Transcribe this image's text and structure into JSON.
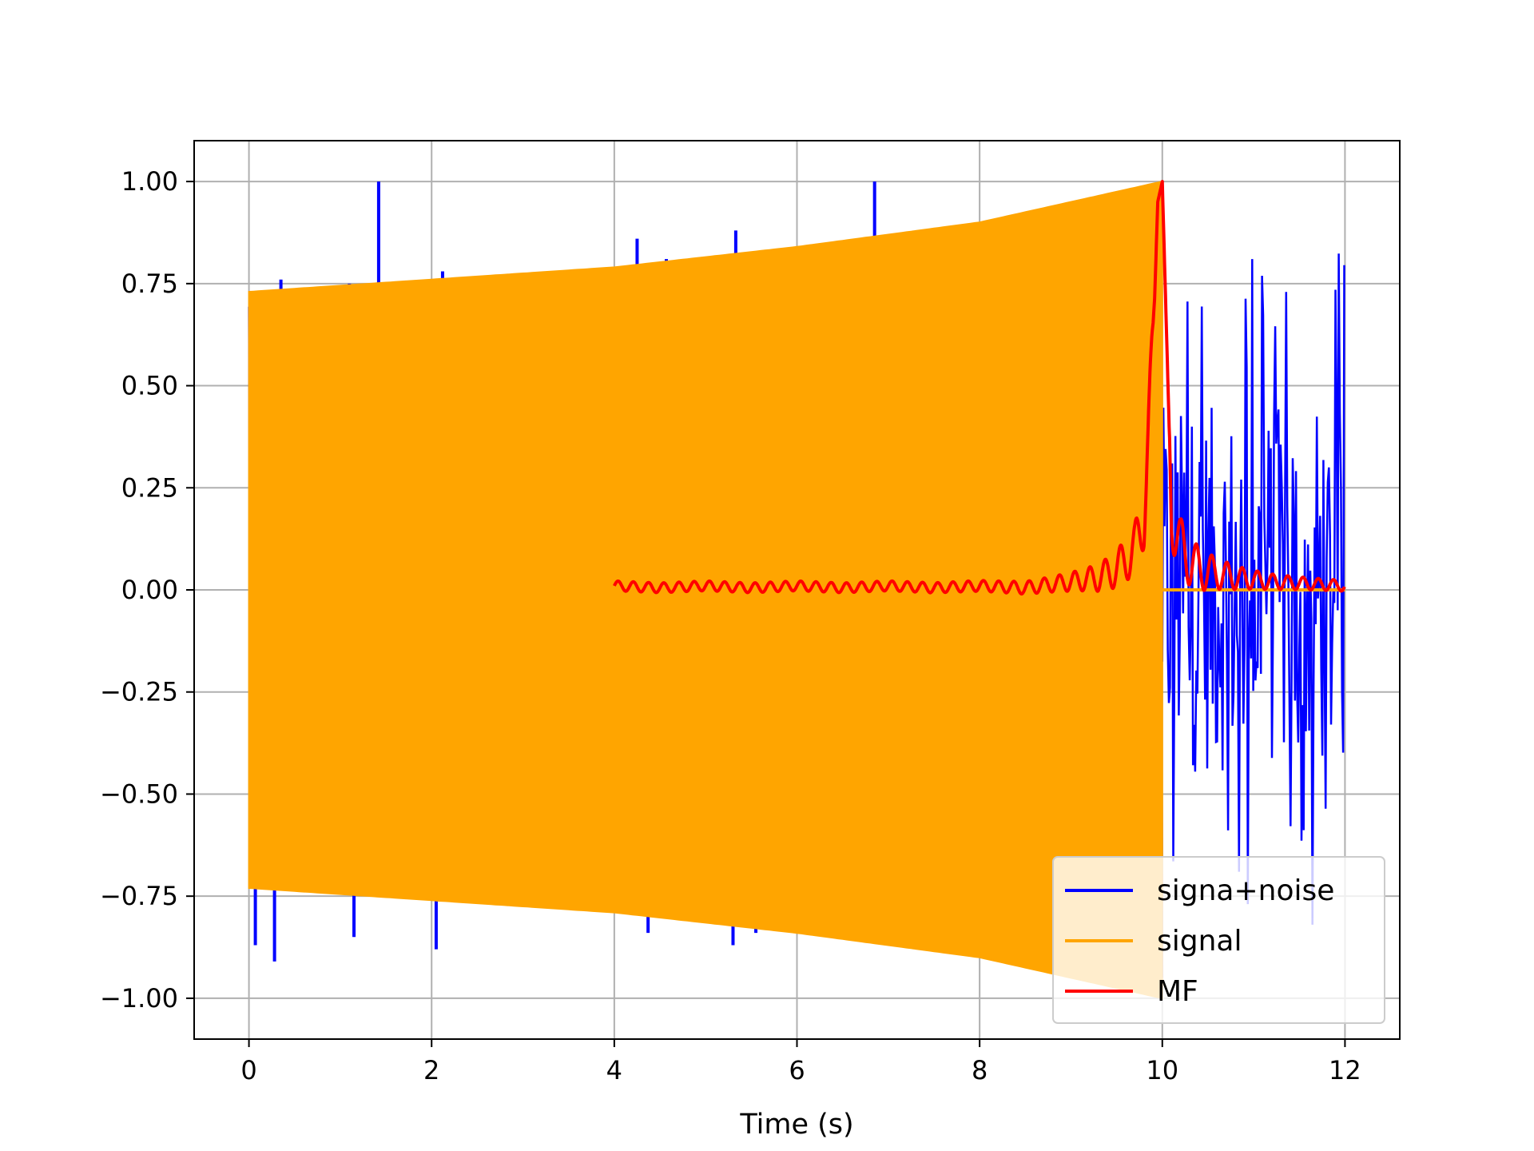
{
  "chart_data": {
    "type": "line",
    "title": "",
    "xlabel": "Time (s)",
    "ylabel": "",
    "xlim": [
      -0.6,
      12.6
    ],
    "ylim": [
      -1.1,
      1.1
    ],
    "xticks": [
      0,
      2,
      4,
      6,
      8,
      10,
      12
    ],
    "xtick_labels": [
      "0",
      "2",
      "4",
      "6",
      "8",
      "10",
      "12"
    ],
    "yticks": [
      1.0,
      0.75,
      0.5,
      0.25,
      0.0,
      -0.25,
      -0.5,
      -0.75,
      -1.0
    ],
    "ytick_labels": [
      "1.00",
      "0.75",
      "0.50",
      "0.25",
      "0.00",
      "−0.25",
      "−0.50",
      "−0.75",
      "−1.00"
    ],
    "grid": true,
    "legend_position": "lower-right",
    "series": [
      {
        "name": "signa+noise",
        "color": "#0000ff",
        "description_points": {
          "t_start": 0.0,
          "t_end": 12.0,
          "spikes": [
            {
              "t": 0.35,
              "y": 0.76
            },
            {
              "t": 1.1,
              "y": 0.75
            },
            {
              "t": 1.42,
              "y": 1.0
            },
            {
              "t": 2.12,
              "y": 0.78
            },
            {
              "t": 4.25,
              "y": 0.86
            },
            {
              "t": 4.57,
              "y": 0.81
            },
            {
              "t": 5.33,
              "y": 0.88
            },
            {
              "t": 6.85,
              "y": 1.0
            },
            {
              "t": 0.07,
              "y": -0.87
            },
            {
              "t": 0.28,
              "y": -0.91
            },
            {
              "t": 1.15,
              "y": -0.85
            },
            {
              "t": 2.05,
              "y": -0.88
            },
            {
              "t": 4.37,
              "y": -0.84
            },
            {
              "t": 5.3,
              "y": -0.87
            },
            {
              "t": 5.55,
              "y": -0.84
            }
          ],
          "noise_after_signal": {
            "t_start": 10.0,
            "t_end": 12.0,
            "y_max": 0.85,
            "y_min": -0.82
          }
        }
      },
      {
        "name": "signal",
        "color": "#ffa500",
        "envelope": {
          "t": [
            0.0,
            2.0,
            4.0,
            6.0,
            8.0,
            9.0,
            10.0
          ],
          "amplitude": [
            0.73,
            0.76,
            0.79,
            0.84,
            0.9,
            0.95,
            1.0
          ]
        },
        "after_end": {
          "t_start": 10.0,
          "t_end": 12.0,
          "y": 0.0
        }
      },
      {
        "name": "MF",
        "color": "#ff0000",
        "x": [
          4.0,
          4.5,
          5.0,
          5.5,
          6.0,
          6.5,
          7.0,
          7.5,
          8.0,
          8.5,
          9.0,
          9.3,
          9.5,
          9.7,
          9.8,
          9.9,
          9.95,
          10.0,
          10.05,
          10.1,
          10.2,
          10.4,
          10.8,
          11.2,
          11.6,
          12.0
        ],
        "y": [
          0.01,
          0.005,
          0.01,
          0.005,
          0.01,
          0.005,
          0.01,
          0.005,
          0.01,
          0.005,
          0.02,
          0.03,
          0.05,
          0.1,
          0.18,
          0.6,
          0.95,
          1.0,
          0.6,
          0.2,
          0.1,
          0.05,
          0.03,
          0.02,
          0.015,
          0.01
        ]
      }
    ]
  }
}
